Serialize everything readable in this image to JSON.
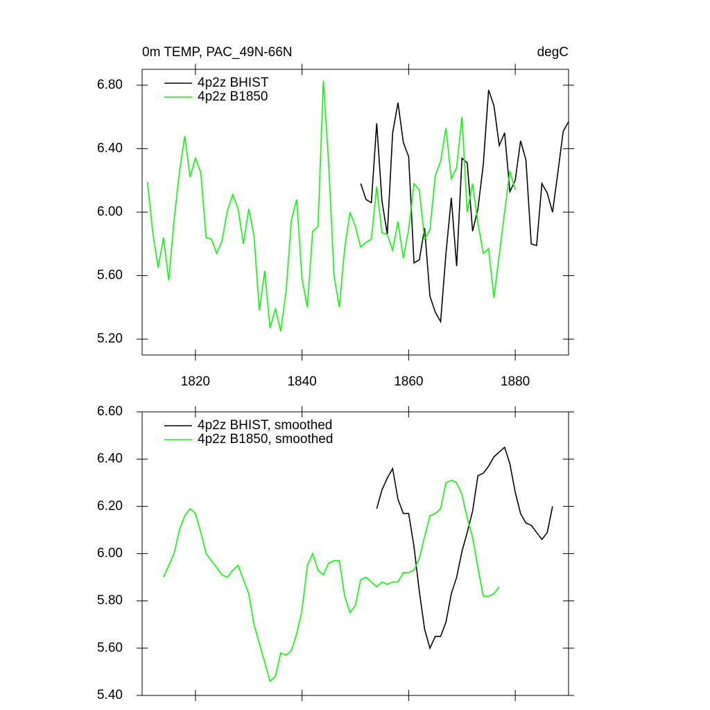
{
  "chart_data": [
    {
      "type": "line",
      "title": "0m TEMP, PAC_49N-66N",
      "subtitle": "degC",
      "xlim": [
        1810,
        1890
      ],
      "xticks": [
        1820,
        1840,
        1860,
        1880
      ],
      "xtick_labels": true,
      "ylim": [
        5.1,
        6.9
      ],
      "yticks": [
        {
          "value": 5.2,
          "label": "5.20"
        },
        {
          "value": 5.6,
          "label": "5.60"
        },
        {
          "value": 6.0,
          "label": "6.00"
        },
        {
          "value": 6.4,
          "label": "6.40"
        },
        {
          "value": 6.8,
          "label": "6.80"
        }
      ],
      "legend": "upper left",
      "series": [
        {
          "name": "4p2z BHIST",
          "color": "#000000",
          "x": [
            1851,
            1852,
            1853,
            1854,
            1855,
            1856,
            1857,
            1858,
            1859,
            1860,
            1861,
            1862,
            1863,
            1864,
            1865,
            1866,
            1867,
            1868,
            1869,
            1870,
            1871,
            1872,
            1873,
            1874,
            1875,
            1876,
            1877,
            1878,
            1879,
            1880,
            1881,
            1882,
            1883,
            1884,
            1885,
            1886,
            1887,
            1888,
            1889,
            1890
          ],
          "values": [
            6.18,
            6.08,
            6.06,
            6.56,
            6.07,
            5.86,
            6.5,
            6.69,
            6.44,
            6.35,
            5.68,
            5.7,
            5.9,
            5.47,
            5.37,
            5.31,
            5.74,
            6.09,
            5.66,
            6.34,
            6.31,
            5.88,
            6.02,
            6.3,
            6.77,
            6.67,
            6.42,
            6.5,
            6.13,
            6.2,
            6.45,
            6.33,
            5.8,
            5.79,
            6.18,
            6.12,
            6.0,
            6.25,
            6.51,
            6.57
          ]
        },
        {
          "name": "4p2z B1850",
          "color": "#00ff00",
          "x": [
            1811,
            1812,
            1813,
            1814,
            1815,
            1816,
            1817,
            1818,
            1819,
            1820,
            1821,
            1822,
            1823,
            1824,
            1825,
            1826,
            1827,
            1828,
            1829,
            1830,
            1831,
            1832,
            1833,
            1834,
            1835,
            1836,
            1837,
            1838,
            1839,
            1840,
            1841,
            1842,
            1843,
            1844,
            1845,
            1846,
            1847,
            1848,
            1849,
            1850,
            1851,
            1852,
            1853,
            1854,
            1855,
            1856,
            1857,
            1858,
            1859,
            1860,
            1861,
            1862,
            1863,
            1864,
            1865,
            1866,
            1867,
            1868,
            1869,
            1870,
            1871,
            1872,
            1873,
            1874,
            1875,
            1876,
            1877,
            1878,
            1879,
            1880
          ],
          "values": [
            6.19,
            5.87,
            5.65,
            5.84,
            5.57,
            5.95,
            6.25,
            6.48,
            6.22,
            6.34,
            6.25,
            5.84,
            5.83,
            5.74,
            5.82,
            6.01,
            6.11,
            6.02,
            5.8,
            6.02,
            5.85,
            5.38,
            5.63,
            5.27,
            5.39,
            5.25,
            5.5,
            5.95,
            6.08,
            5.58,
            5.4,
            5.88,
            5.91,
            6.83,
            6.3,
            5.6,
            5.4,
            5.77,
            6.0,
            5.91,
            5.78,
            5.81,
            5.83,
            6.16,
            5.87,
            5.86,
            5.76,
            5.94,
            5.71,
            5.89,
            6.18,
            6.14,
            5.83,
            5.89,
            6.23,
            6.32,
            6.53,
            6.21,
            6.28,
            6.6,
            6.0,
            6.18,
            5.93,
            5.74,
            5.77,
            5.46,
            5.73,
            6.0,
            6.26,
            6.14
          ]
        }
      ]
    },
    {
      "type": "line",
      "xlim": [
        1810,
        1890
      ],
      "xticks": [
        1820,
        1840,
        1860,
        1880
      ],
      "xtick_labels": false,
      "ylim": [
        5.4,
        6.6
      ],
      "yticks": [
        {
          "value": 5.4,
          "label": "5.40"
        },
        {
          "value": 5.6,
          "label": "5.60"
        },
        {
          "value": 5.8,
          "label": "5.80"
        },
        {
          "value": 6.0,
          "label": "6.00"
        },
        {
          "value": 6.2,
          "label": "6.20"
        },
        {
          "value": 6.4,
          "label": "6.40"
        },
        {
          "value": 6.6,
          "label": "6.60"
        }
      ],
      "legend": "upper left",
      "series": [
        {
          "name": "4p2z BHIST, smoothed",
          "color": "#000000",
          "x": [
            1854,
            1855,
            1856,
            1857,
            1858,
            1859,
            1860,
            1861,
            1862,
            1863,
            1864,
            1865,
            1866,
            1867,
            1868,
            1869,
            1870,
            1871,
            1872,
            1873,
            1874,
            1875,
            1876,
            1877,
            1878,
            1879,
            1880,
            1881,
            1882,
            1883,
            1884,
            1885,
            1886,
            1887
          ],
          "values": [
            6.19,
            6.27,
            6.32,
            6.36,
            6.23,
            6.17,
            6.17,
            6.03,
            5.84,
            5.68,
            5.6,
            5.65,
            5.65,
            5.71,
            5.83,
            5.9,
            6.01,
            6.09,
            6.18,
            6.33,
            6.34,
            6.37,
            6.41,
            6.43,
            6.45,
            6.38,
            6.26,
            6.17,
            6.13,
            6.12,
            6.09,
            6.06,
            6.09,
            6.2
          ]
        },
        {
          "name": "4p2z B1850, smoothed",
          "color": "#00ff00",
          "x": [
            1814,
            1815,
            1816,
            1817,
            1818,
            1819,
            1820,
            1821,
            1822,
            1823,
            1824,
            1825,
            1826,
            1827,
            1828,
            1829,
            1830,
            1831,
            1832,
            1833,
            1834,
            1835,
            1836,
            1837,
            1838,
            1839,
            1840,
            1841,
            1842,
            1843,
            1844,
            1845,
            1846,
            1847,
            1848,
            1849,
            1850,
            1851,
            1852,
            1853,
            1854,
            1855,
            1856,
            1857,
            1858,
            1859,
            1860,
            1861,
            1862,
            1863,
            1864,
            1865,
            1866,
            1867,
            1868,
            1869,
            1870,
            1871,
            1872,
            1873,
            1874,
            1875,
            1876,
            1877
          ],
          "values": [
            5.9,
            5.95,
            6.0,
            6.1,
            6.16,
            6.19,
            6.17,
            6.09,
            6.0,
            5.97,
            5.94,
            5.91,
            5.9,
            5.93,
            5.95,
            5.89,
            5.83,
            5.7,
            5.62,
            5.54,
            5.46,
            5.48,
            5.58,
            5.57,
            5.59,
            5.66,
            5.76,
            5.95,
            6.0,
            5.93,
            5.91,
            5.96,
            5.97,
            5.97,
            5.82,
            5.75,
            5.78,
            5.89,
            5.9,
            5.88,
            5.86,
            5.88,
            5.87,
            5.88,
            5.88,
            5.92,
            5.92,
            5.93,
            5.98,
            6.07,
            6.16,
            6.17,
            6.19,
            6.3,
            6.31,
            6.3,
            6.25,
            6.15,
            6.07,
            5.94,
            5.82,
            5.82,
            5.83,
            5.86
          ]
        }
      ]
    }
  ]
}
